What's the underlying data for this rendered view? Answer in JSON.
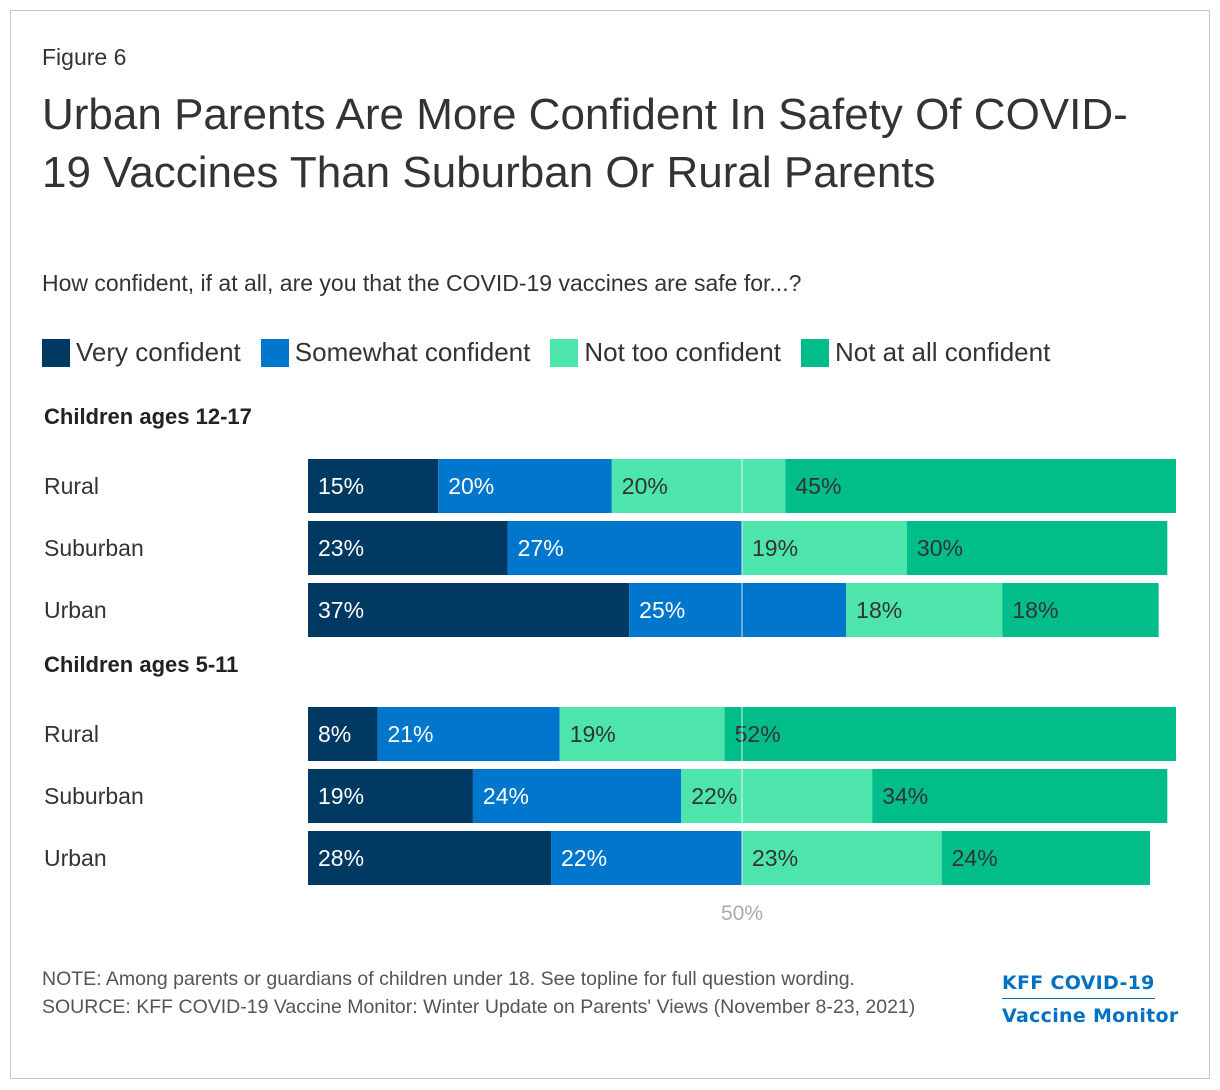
{
  "figure_label": "Figure 6",
  "title": "Urban Parents Are More Confident In Safety Of COVID-19 Vaccines Than Suburban Or Rural Parents",
  "subtitle": "How confident, if at all, are you that the COVID-19 vaccines are safe for...?",
  "legend": [
    {
      "label": "Very confident",
      "color": "#003a63"
    },
    {
      "label": "Somewhat confident",
      "color": "#0077cc"
    },
    {
      "label": "Not too confident",
      "color": "#4ee5ac"
    },
    {
      "label": "Not at all confident",
      "color": "#00bd89"
    }
  ],
  "chart_data": {
    "type": "bar",
    "orientation": "horizontal",
    "stacked": true,
    "reference_line": {
      "value": 50,
      "label": "50%"
    },
    "series_names": [
      "Very confident",
      "Somewhat confident",
      "Not too confident",
      "Not at all confident"
    ],
    "groups": [
      {
        "heading": "Children ages 12-17",
        "rows": [
          {
            "label": "Rural",
            "values": [
              15,
              20,
              20,
              45
            ]
          },
          {
            "label": "Suburban",
            "values": [
              23,
              27,
              19,
              30
            ]
          },
          {
            "label": "Urban",
            "values": [
              37,
              25,
              18,
              18
            ]
          }
        ]
      },
      {
        "heading": "Children ages 5-11",
        "rows": [
          {
            "label": "Rural",
            "values": [
              8,
              21,
              19,
              52
            ]
          },
          {
            "label": "Suburban",
            "values": [
              19,
              24,
              22,
              34
            ]
          },
          {
            "label": "Urban",
            "values": [
              28,
              22,
              23,
              24
            ]
          }
        ]
      }
    ],
    "xlim": [
      0,
      100
    ],
    "value_suffix": "%"
  },
  "note": "NOTE: Among parents or guardians of children under 18. See topline for full question wording.",
  "source": "SOURCE: KFF COVID-19 Vaccine Monitor: Winter Update on Parents' Views (November 8-23, 2021)",
  "brand": {
    "line1": "KFF COVID-19",
    "line2": "Vaccine Monitor"
  }
}
